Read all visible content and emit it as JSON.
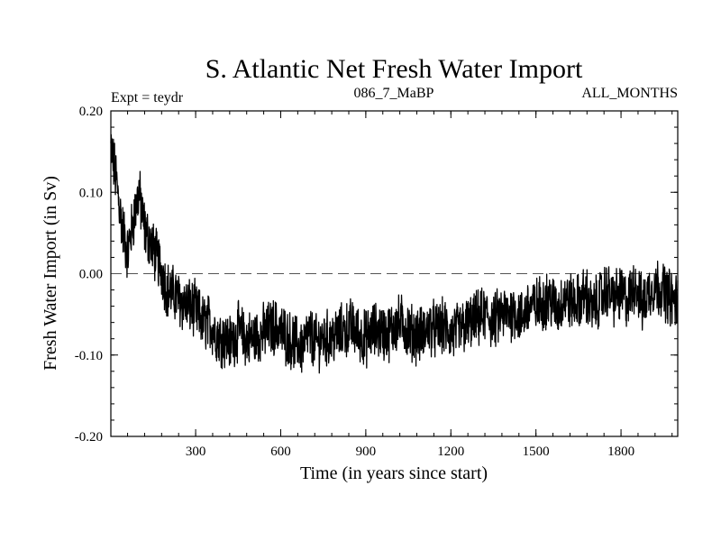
{
  "chart_data": {
    "type": "line",
    "title": "S. Atlantic Net Fresh Water Import",
    "subtitle_left": "Expt = teydr",
    "subtitle_center": "086_7_MaBP",
    "subtitle_right": "ALL_MONTHS",
    "xlabel": "Time (in years since start)",
    "ylabel": "Fresh Water Import (in Sv)",
    "xlim": [
      1,
      2000
    ],
    "ylim": [
      -0.2,
      0.2
    ],
    "x_ticks": [
      300,
      600,
      900,
      1200,
      1500,
      1800
    ],
    "x_tick_labels": [
      "300",
      "600",
      "900",
      "1200",
      "1500",
      "1800"
    ],
    "y_ticks": [
      -0.2,
      -0.1,
      0.0,
      0.1,
      0.2
    ],
    "y_tick_labels": [
      "-0.20",
      "-0.10",
      "0.00",
      "0.10",
      "0.20"
    ],
    "reference_line": 0.0,
    "series": [
      {
        "name": "Fresh Water Import",
        "x": [
          1,
          20,
          40,
          60,
          80,
          100,
          120,
          150,
          175,
          200,
          225,
          250,
          275,
          300,
          325,
          350,
          375,
          400,
          425,
          450,
          475,
          500,
          525,
          550,
          575,
          600,
          625,
          650,
          675,
          700,
          725,
          750,
          775,
          800,
          825,
          850,
          875,
          900,
          925,
          950,
          975,
          1000,
          1025,
          1050,
          1075,
          1100,
          1125,
          1150,
          1175,
          1200,
          1225,
          1250,
          1275,
          1300,
          1325,
          1350,
          1375,
          1400,
          1425,
          1450,
          1475,
          1500,
          1525,
          1550,
          1575,
          1600,
          1625,
          1650,
          1675,
          1700,
          1725,
          1750,
          1775,
          1800,
          1825,
          1850,
          1875,
          1900,
          1925,
          1950,
          1975,
          2000
        ],
        "values": [
          0.155,
          0.115,
          0.06,
          0.025,
          0.065,
          0.1,
          0.055,
          0.03,
          0.01,
          -0.02,
          -0.025,
          -0.035,
          -0.04,
          -0.045,
          -0.06,
          -0.06,
          -0.075,
          -0.08,
          -0.085,
          -0.07,
          -0.08,
          -0.08,
          -0.075,
          -0.07,
          -0.065,
          -0.07,
          -0.08,
          -0.085,
          -0.09,
          -0.075,
          -0.085,
          -0.08,
          -0.08,
          -0.075,
          -0.07,
          -0.065,
          -0.075,
          -0.08,
          -0.07,
          -0.07,
          -0.075,
          -0.065,
          -0.06,
          -0.07,
          -0.075,
          -0.075,
          -0.065,
          -0.07,
          -0.065,
          -0.075,
          -0.07,
          -0.065,
          -0.06,
          -0.055,
          -0.05,
          -0.06,
          -0.05,
          -0.05,
          -0.045,
          -0.055,
          -0.04,
          -0.04,
          -0.035,
          -0.03,
          -0.045,
          -0.03,
          -0.035,
          -0.035,
          -0.025,
          -0.045,
          -0.03,
          -0.02,
          -0.03,
          -0.025,
          -0.035,
          -0.01,
          -0.04,
          -0.02,
          -0.015,
          -0.02,
          -0.03,
          -0.035
        ]
      }
    ]
  }
}
